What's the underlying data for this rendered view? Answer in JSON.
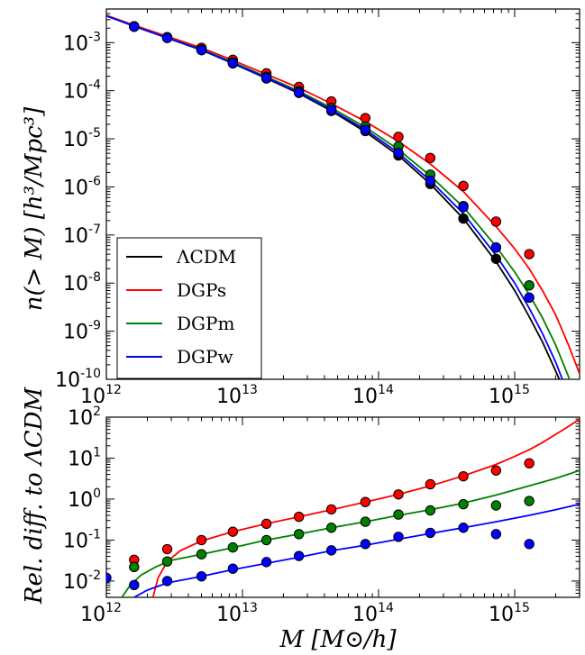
{
  "chart_data": [
    {
      "type": "line",
      "panel": "top",
      "scale": {
        "x": "log",
        "y": "log"
      },
      "xlim": [
        1000000000000.0,
        3000000000000000.0
      ],
      "ylim": [
        1e-10,
        0.005
      ],
      "ylabel": "n(> M) [h³/Mpc³]",
      "x_ticks": [
        {
          "base": "10",
          "exp": "12",
          "value": 1000000000000.0
        },
        {
          "base": "10",
          "exp": "13",
          "value": 10000000000000.0
        },
        {
          "base": "10",
          "exp": "14",
          "value": 100000000000000.0
        },
        {
          "base": "10",
          "exp": "15",
          "value": 1000000000000000.0
        }
      ],
      "y_ticks": [
        {
          "base": "10",
          "exp": "-3",
          "value": 0.001
        },
        {
          "base": "10",
          "exp": "-4",
          "value": 0.0001
        },
        {
          "base": "10",
          "exp": "-5",
          "value": 1e-05
        },
        {
          "base": "10",
          "exp": "-6",
          "value": 1e-06
        },
        {
          "base": "10",
          "exp": "-7",
          "value": 1e-07
        },
        {
          "base": "10",
          "exp": "-8",
          "value": 1e-08
        },
        {
          "base": "10",
          "exp": "-9",
          "value": 1e-09
        },
        {
          "base": "10",
          "exp": "-10",
          "value": 1e-10
        }
      ],
      "legend_position": "lower-left",
      "x_points": [
        1600000000000.0,
        2800000000000.0,
        5000000000000.0,
        8500000000000.0,
        15000000000000.0,
        26000000000000.0,
        45000000000000.0,
        80000000000000.0,
        140000000000000.0,
        240000000000000.0,
        420000000000000.0,
        730000000000000.0,
        1280000000000000.0
      ],
      "series": [
        {
          "name": "ΛCDM",
          "color": "#000000",
          "line": [
            [
              1000000000000.0,
              0.0036
            ],
            [
              1600000000000.0,
              0.0022
            ],
            [
              2800000000000.0,
              0.00125
            ],
            [
              5000000000000.0,
              0.0007
            ],
            [
              8500000000000.0,
              0.00037
            ],
            [
              15000000000000.0,
              0.00018
            ],
            [
              26000000000000.0,
              8.8e-05
            ],
            [
              45000000000000.0,
              3.8e-05
            ],
            [
              80000000000000.0,
              1.4e-05
            ],
            [
              140000000000000.0,
              4.5e-06
            ],
            [
              240000000000000.0,
              1.15e-06
            ],
            [
              420000000000000.0,
              2.2e-07
            ],
            [
              730000000000000.0,
              2.8e-08
            ],
            [
              1000000000000000.0,
              7e-09
            ],
            [
              1280000000000000.0,
              2e-09
            ],
            [
              1600000000000000.0,
              6e-10
            ],
            [
              2000000000000000.0,
              1.5e-10
            ],
            [
              2300000000000000.0,
              6e-11
            ]
          ],
          "points": [
            0.00215,
            0.00125,
            0.0007,
            0.00037,
            0.00018,
            9e-05,
            3.8e-05,
            1.45e-05,
            4.5e-06,
            1.15e-06,
            2.2e-07,
            3.2e-08,
            null
          ]
        },
        {
          "name": "DGPs",
          "color": "#ff0000",
          "line": [
            [
              1000000000000.0,
              0.0037
            ],
            [
              1600000000000.0,
              0.0023
            ],
            [
              2800000000000.0,
              0.00135
            ],
            [
              5000000000000.0,
              0.00078
            ],
            [
              8500000000000.0,
              0.00043
            ],
            [
              15000000000000.0,
              0.00022
            ],
            [
              26000000000000.0,
              0.000115
            ],
            [
              45000000000000.0,
              5.4e-05
            ],
            [
              80000000000000.0,
              2.3e-05
            ],
            [
              140000000000000.0,
              8.8e-06
            ],
            [
              240000000000000.0,
              3e-06
            ],
            [
              420000000000000.0,
              8e-07
            ],
            [
              730000000000000.0,
              1.5e-07
            ],
            [
              1000000000000000.0,
              5.2e-08
            ],
            [
              1280000000000000.0,
              2e-08
            ],
            [
              1600000000000000.0,
              7e-09
            ],
            [
              2000000000000000.0,
              2.2e-09
            ],
            [
              2500000000000000.0,
              5e-10
            ],
            [
              3000000000000000.0,
              1.3e-10
            ]
          ],
          "points": [
            0.0022,
            0.0013,
            0.00078,
            0.00044,
            0.00023,
            0.00012,
            6e-05,
            2.7e-05,
            1.1e-05,
            4e-06,
            1.05e-06,
            1.9e-07,
            4e-08
          ]
        },
        {
          "name": "DGPm",
          "color": "#008000",
          "line": [
            [
              1000000000000.0,
              0.0036
            ],
            [
              1600000000000.0,
              0.0022
            ],
            [
              2800000000000.0,
              0.00127
            ],
            [
              5000000000000.0,
              0.00072
            ],
            [
              8500000000000.0,
              0.00039
            ],
            [
              15000000000000.0,
              0.000195
            ],
            [
              26000000000000.0,
              9.8e-05
            ],
            [
              45000000000000.0,
              4.4e-05
            ],
            [
              80000000000000.0,
              1.75e-05
            ],
            [
              140000000000000.0,
              6e-06
            ],
            [
              240000000000000.0,
              1.7e-06
            ],
            [
              420000000000000.0,
              3.8e-07
            ],
            [
              730000000000000.0,
              5.8e-08
            ],
            [
              1000000000000000.0,
              1.7e-08
            ],
            [
              1280000000000000.0,
              5.8e-09
            ],
            [
              1600000000000000.0,
              1.9e-09
            ],
            [
              2000000000000000.0,
              5.2e-10
            ],
            [
              2500000000000000.0,
              1.1e-10
            ],
            [
              2600000000000000.0,
              8e-11
            ]
          ],
          "points": [
            0.00215,
            0.00127,
            0.00072,
            0.00039,
            0.000195,
            9.8e-05,
            4.4e-05,
            1.8e-05,
            7e-06,
            1.8e-06,
            4e-07,
            5.5e-08,
            9e-09
          ]
        },
        {
          "name": "DGPw",
          "color": "#0000ff",
          "line": [
            [
              1000000000000.0,
              0.0036
            ],
            [
              1600000000000.0,
              0.0022
            ],
            [
              2800000000000.0,
              0.00125
            ],
            [
              5000000000000.0,
              0.00071
            ],
            [
              8500000000000.0,
              0.000375
            ],
            [
              15000000000000.0,
              0.000185
            ],
            [
              26000000000000.0,
              9.2e-05
            ],
            [
              45000000000000.0,
              4e-05
            ],
            [
              80000000000000.0,
              1.55e-05
            ],
            [
              140000000000000.0,
              5.1e-06
            ],
            [
              240000000000000.0,
              1.35e-06
            ],
            [
              420000000000000.0,
              2.8e-07
            ],
            [
              730000000000000.0,
              3.8e-08
            ],
            [
              1000000000000000.0,
              1e-08
            ],
            [
              1280000000000000.0,
              3e-09
            ],
            [
              1600000000000000.0,
              9e-10
            ],
            [
              2000000000000000.0,
              2.3e-10
            ],
            [
              2400000000000000.0,
              6e-11
            ]
          ],
          "points": [
            0.00215,
            0.00125,
            0.0007,
            0.000375,
            0.000185,
            9.2e-05,
            4e-05,
            1.55e-05,
            5.1e-06,
            1.35e-06,
            3.8e-07,
            5.5e-08,
            5e-09
          ]
        }
      ]
    },
    {
      "type": "line",
      "panel": "bottom",
      "scale": {
        "x": "log",
        "y": "log"
      },
      "xlim": [
        1000000000000.0,
        3000000000000000.0
      ],
      "ylim": [
        0.004,
        100
      ],
      "xlabel": "M [M⊙/h]",
      "ylabel": "Rel. diff. to ΛCDM",
      "x_ticks": [
        {
          "base": "10",
          "exp": "12",
          "value": 1000000000000.0
        },
        {
          "base": "10",
          "exp": "13",
          "value": 10000000000000.0
        },
        {
          "base": "10",
          "exp": "14",
          "value": 100000000000000.0
        },
        {
          "base": "10",
          "exp": "15",
          "value": 1000000000000000.0
        }
      ],
      "y_ticks": [
        {
          "base": "10",
          "exp": "2",
          "value": 100
        },
        {
          "base": "10",
          "exp": "1",
          "value": 10
        },
        {
          "base": "10",
          "exp": "0",
          "value": 1
        },
        {
          "base": "10",
          "exp": "-1",
          "value": 0.1
        },
        {
          "base": "10",
          "exp": "-2",
          "value": 0.01
        }
      ],
      "x_points": [
        1600000000000.0,
        2800000000000.0,
        5000000000000.0,
        8500000000000.0,
        15000000000000.0,
        26000000000000.0,
        45000000000000.0,
        80000000000000.0,
        140000000000000.0,
        240000000000000.0,
        420000000000000.0,
        730000000000000.0,
        1280000000000000.0
      ],
      "series": [
        {
          "name": "DGPs",
          "color": "#ff0000",
          "line": [
            [
              2200000000000.0,
              0.004
            ],
            [
              2400000000000.0,
              0.012
            ],
            [
              2800000000000.0,
              0.03
            ],
            [
              3500000000000.0,
              0.055
            ],
            [
              5000000000000.0,
              0.095
            ],
            [
              8500000000000.0,
              0.16
            ],
            [
              15000000000000.0,
              0.25
            ],
            [
              26000000000000.0,
              0.37
            ],
            [
              45000000000000.0,
              0.55
            ],
            [
              80000000000000.0,
              0.85
            ],
            [
              140000000000000.0,
              1.3
            ],
            [
              240000000000000.0,
              2.1
            ],
            [
              420000000000000.0,
              3.7
            ],
            [
              730000000000000.0,
              7
            ],
            [
              1000000000000000.0,
              11
            ],
            [
              1280000000000000.0,
              16
            ],
            [
              1600000000000000.0,
              24
            ],
            [
              2000000000000000.0,
              38
            ],
            [
              2500000000000000.0,
              60
            ],
            [
              3000000000000000.0,
              90
            ]
          ],
          "points": [
            0.033,
            0.06,
            0.1,
            0.16,
            0.25,
            0.37,
            0.56,
            0.85,
            1.3,
            2.3,
            3.6,
            5.0,
            7.5
          ]
        },
        {
          "name": "DGPm",
          "color": "#008000",
          "line": [
            [
              1300000000000.0,
              0.004
            ],
            [
              1500000000000.0,
              0.008
            ],
            [
              1800000000000.0,
              0.014
            ],
            [
              2300000000000.0,
              0.022
            ],
            [
              3000000000000.0,
              0.032
            ],
            [
              5000000000000.0,
              0.045
            ],
            [
              8500000000000.0,
              0.065
            ],
            [
              15000000000000.0,
              0.1
            ],
            [
              26000000000000.0,
              0.14
            ],
            [
              45000000000000.0,
              0.2
            ],
            [
              80000000000000.0,
              0.28
            ],
            [
              140000000000000.0,
              0.4
            ],
            [
              240000000000000.0,
              0.55
            ],
            [
              420000000000000.0,
              0.8
            ],
            [
              730000000000000.0,
              1.25
            ],
            [
              1280000000000000.0,
              2.1
            ],
            [
              2000000000000000.0,
              3.2
            ],
            [
              3000000000000000.0,
              5
            ]
          ],
          "points": [
            0.022,
            0.03,
            0.045,
            0.066,
            0.1,
            0.14,
            0.2,
            0.28,
            0.42,
            0.53,
            0.75,
            0.7,
            0.9
          ]
        },
        {
          "name": "DGPw",
          "color": "#0000ff",
          "line": [
            [
              1600000000000.0,
              0.004
            ],
            [
              2000000000000.0,
              0.006
            ],
            [
              2800000000000.0,
              0.009
            ],
            [
              5000000000000.0,
              0.013
            ],
            [
              8500000000000.0,
              0.019
            ],
            [
              15000000000000.0,
              0.027
            ],
            [
              26000000000000.0,
              0.038
            ],
            [
              45000000000000.0,
              0.055
            ],
            [
              80000000000000.0,
              0.075
            ],
            [
              140000000000000.0,
              0.105
            ],
            [
              240000000000000.0,
              0.145
            ],
            [
              420000000000000.0,
              0.2
            ],
            [
              730000000000000.0,
              0.28
            ],
            [
              1280000000000000.0,
              0.4
            ],
            [
              2000000000000000.0,
              0.55
            ],
            [
              3000000000000000.0,
              0.75
            ]
          ],
          "points": [
            0.008,
            0.01,
            0.013,
            0.02,
            0.029,
            0.041,
            0.056,
            0.08,
            0.12,
            0.15,
            0.2,
            0.14,
            0.08
          ]
        }
      ],
      "extra_points": [
        {
          "x": 1000000000000.0,
          "y": 0.012,
          "color": "#0000ff"
        }
      ]
    }
  ]
}
